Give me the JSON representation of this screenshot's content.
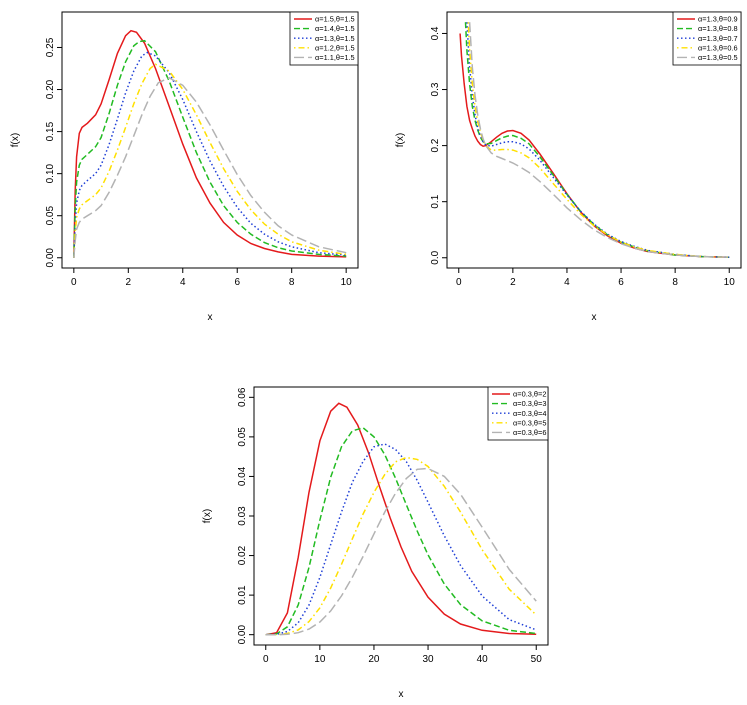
{
  "chart_data": [
    {
      "type": "line",
      "xlabel": "x",
      "ylabel": "f(x)",
      "xlim": [
        0,
        10
      ],
      "ylim": [
        0,
        0.28
      ],
      "x_ticks": [
        "0",
        "2",
        "4",
        "6",
        "8",
        "10"
      ],
      "y_ticks": [
        "0.00",
        "0.05",
        "0.10",
        "0.15",
        "0.20",
        "0.25"
      ],
      "x_tick_values": [
        0,
        2,
        4,
        6,
        8,
        10
      ],
      "y_tick_values": [
        0,
        0.05,
        0.1,
        0.15,
        0.2,
        0.25
      ],
      "legend_position": "top-right",
      "series": [
        {
          "name": "α=1.5,θ=1.5",
          "color": "#e41a1c",
          "dash": "solid",
          "x": [
            0,
            0.05,
            0.1,
            0.2,
            0.3,
            0.5,
            0.8,
            1.0,
            1.3,
            1.6,
            1.9,
            2.1,
            2.3,
            2.6,
            3.0,
            3.5,
            4.0,
            4.5,
            5.0,
            5.5,
            6.0,
            6.5,
            7.0,
            7.5,
            8.0,
            9.0,
            10.0
          ],
          "y": [
            0,
            0.08,
            0.12,
            0.148,
            0.155,
            0.16,
            0.17,
            0.183,
            0.212,
            0.243,
            0.264,
            0.27,
            0.268,
            0.255,
            0.225,
            0.18,
            0.135,
            0.095,
            0.065,
            0.042,
            0.027,
            0.017,
            0.011,
            0.007,
            0.004,
            0.002,
            0.001
          ]
        },
        {
          "name": "α=1.4,θ=1.5",
          "color": "#22bb22",
          "dash": "dashed",
          "x": [
            0,
            0.05,
            0.1,
            0.2,
            0.3,
            0.5,
            0.8,
            1.0,
            1.3,
            1.6,
            1.9,
            2.2,
            2.4,
            2.6,
            3.0,
            3.5,
            4.0,
            4.5,
            5.0,
            5.5,
            6.0,
            6.5,
            7.0,
            7.5,
            8.0,
            9.0,
            10.0
          ],
          "y": [
            0,
            0.06,
            0.09,
            0.11,
            0.117,
            0.123,
            0.132,
            0.143,
            0.172,
            0.205,
            0.233,
            0.252,
            0.257,
            0.258,
            0.245,
            0.21,
            0.167,
            0.125,
            0.09,
            0.062,
            0.042,
            0.028,
            0.018,
            0.012,
            0.008,
            0.004,
            0.002
          ]
        },
        {
          "name": "α=1.3,θ=1.5",
          "color": "#1f3fd6",
          "dash": "dotted",
          "x": [
            0,
            0.05,
            0.1,
            0.2,
            0.3,
            0.5,
            0.8,
            1.0,
            1.3,
            1.6,
            1.9,
            2.2,
            2.5,
            2.7,
            3.0,
            3.5,
            4.0,
            4.5,
            5.0,
            5.5,
            6.0,
            6.5,
            7.0,
            7.5,
            8.0,
            9.0,
            10.0
          ],
          "y": [
            0,
            0.04,
            0.065,
            0.08,
            0.086,
            0.092,
            0.1,
            0.11,
            0.135,
            0.165,
            0.196,
            0.222,
            0.24,
            0.244,
            0.24,
            0.22,
            0.188,
            0.15,
            0.115,
            0.085,
            0.06,
            0.041,
            0.028,
            0.019,
            0.013,
            0.006,
            0.003
          ]
        },
        {
          "name": "α=1.2,θ=1.5",
          "color": "#ffe000",
          "dash": "dotdash",
          "x": [
            0,
            0.05,
            0.1,
            0.2,
            0.3,
            0.5,
            0.8,
            1.0,
            1.3,
            1.6,
            1.9,
            2.2,
            2.5,
            2.8,
            3.0,
            3.5,
            4.0,
            4.5,
            5.0,
            5.5,
            6.0,
            6.5,
            7.0,
            7.5,
            8.0,
            9.0,
            10.0
          ],
          "y": [
            0,
            0.03,
            0.048,
            0.058,
            0.063,
            0.068,
            0.075,
            0.083,
            0.103,
            0.128,
            0.155,
            0.183,
            0.207,
            0.225,
            0.23,
            0.222,
            0.2,
            0.17,
            0.137,
            0.106,
            0.079,
            0.057,
            0.04,
            0.028,
            0.019,
            0.009,
            0.004
          ]
        },
        {
          "name": "α=1.1,θ=1.5",
          "color": "#b3b3b3",
          "dash": "longdash",
          "x": [
            0,
            0.05,
            0.1,
            0.2,
            0.3,
            0.5,
            0.8,
            1.0,
            1.3,
            1.6,
            1.9,
            2.2,
            2.5,
            2.8,
            3.1,
            3.5,
            4.0,
            4.5,
            5.0,
            5.5,
            6.0,
            6.5,
            7.0,
            7.5,
            8.0,
            9.0,
            10.0
          ],
          "y": [
            0,
            0.02,
            0.034,
            0.042,
            0.046,
            0.05,
            0.056,
            0.062,
            0.078,
            0.098,
            0.12,
            0.145,
            0.17,
            0.192,
            0.208,
            0.214,
            0.205,
            0.185,
            0.158,
            0.128,
            0.099,
            0.074,
            0.054,
            0.038,
            0.027,
            0.013,
            0.006
          ]
        }
      ]
    },
    {
      "type": "line",
      "xlabel": "x",
      "ylabel": "f(x)",
      "xlim": [
        0,
        10
      ],
      "ylim": [
        0,
        0.42
      ],
      "x_ticks": [
        "0",
        "2",
        "4",
        "6",
        "8",
        "10"
      ],
      "y_ticks": [
        "0.0",
        "0.1",
        "0.2",
        "0.3",
        "0.4"
      ],
      "x_tick_values": [
        0,
        2,
        4,
        6,
        8,
        10
      ],
      "y_tick_values": [
        0,
        0.1,
        0.2,
        0.3,
        0.4
      ],
      "legend_position": "top-right",
      "series": [
        {
          "name": "α=1.3,θ=0.9",
          "color": "#e41a1c",
          "dash": "solid",
          "x": [
            0.05,
            0.1,
            0.2,
            0.3,
            0.4,
            0.5,
            0.6,
            0.7,
            0.8,
            0.9,
            1.0,
            1.2,
            1.4,
            1.6,
            1.8,
            2.0,
            2.3,
            2.6,
            3.0,
            3.5,
            4.0,
            4.5,
            5.0,
            5.5,
            6.0,
            6.5,
            7.0,
            8.0,
            9.0,
            10.0
          ],
          "y": [
            0.4,
            0.36,
            0.31,
            0.27,
            0.245,
            0.23,
            0.217,
            0.208,
            0.202,
            0.199,
            0.2,
            0.207,
            0.215,
            0.222,
            0.226,
            0.227,
            0.222,
            0.21,
            0.185,
            0.15,
            0.114,
            0.082,
            0.057,
            0.039,
            0.026,
            0.017,
            0.011,
            0.005,
            0.002,
            0.001
          ]
        },
        {
          "name": "α=1.3,θ=0.8",
          "color": "#22bb22",
          "dash": "dashed",
          "x": [
            0.25,
            0.3,
            0.4,
            0.5,
            0.6,
            0.7,
            0.8,
            0.9,
            1.0,
            1.2,
            1.4,
            1.6,
            1.8,
            2.0,
            2.3,
            2.6,
            3.0,
            3.5,
            4.0,
            4.5,
            5.0,
            5.5,
            6.0,
            6.5,
            7.0,
            8.0,
            9.0,
            10.0
          ],
          "y": [
            0.42,
            0.37,
            0.31,
            0.27,
            0.245,
            0.228,
            0.215,
            0.207,
            0.203,
            0.204,
            0.209,
            0.214,
            0.217,
            0.218,
            0.213,
            0.203,
            0.18,
            0.147,
            0.113,
            0.083,
            0.059,
            0.041,
            0.028,
            0.019,
            0.012,
            0.005,
            0.002,
            0.001
          ]
        },
        {
          "name": "α=1.3,θ=0.7",
          "color": "#1f3fd6",
          "dash": "dotted",
          "x": [
            0.3,
            0.4,
            0.5,
            0.6,
            0.7,
            0.8,
            0.9,
            1.0,
            1.2,
            1.4,
            1.6,
            1.8,
            2.0,
            2.3,
            2.6,
            3.0,
            3.5,
            4.0,
            4.5,
            5.0,
            5.5,
            6.0,
            6.5,
            7.0,
            8.0,
            9.0,
            10.0
          ],
          "y": [
            0.42,
            0.34,
            0.29,
            0.255,
            0.232,
            0.217,
            0.207,
            0.201,
            0.199,
            0.202,
            0.205,
            0.207,
            0.207,
            0.203,
            0.194,
            0.174,
            0.143,
            0.112,
            0.083,
            0.06,
            0.042,
            0.029,
            0.02,
            0.013,
            0.006,
            0.002,
            0.001
          ]
        },
        {
          "name": "α=1.3,θ=0.6",
          "color": "#ffe000",
          "dash": "dotdash",
          "x": [
            0.35,
            0.4,
            0.5,
            0.6,
            0.7,
            0.8,
            0.9,
            1.0,
            1.2,
            1.4,
            1.6,
            1.8,
            2.0,
            2.3,
            2.6,
            3.0,
            3.5,
            4.0,
            4.5,
            5.0,
            5.5,
            6.0,
            6.5,
            7.0,
            8.0,
            9.0,
            10.0
          ],
          "y": [
            0.42,
            0.37,
            0.31,
            0.27,
            0.243,
            0.224,
            0.21,
            0.2,
            0.192,
            0.192,
            0.193,
            0.193,
            0.192,
            0.187,
            0.178,
            0.16,
            0.132,
            0.104,
            0.078,
            0.057,
            0.041,
            0.028,
            0.019,
            0.013,
            0.006,
            0.002,
            0.001
          ]
        },
        {
          "name": "α=1.3,θ=0.5",
          "color": "#b3b3b3",
          "dash": "longdash",
          "x": [
            0.4,
            0.5,
            0.6,
            0.7,
            0.8,
            0.9,
            1.0,
            1.2,
            1.4,
            1.6,
            1.8,
            2.0,
            2.3,
            2.6,
            3.0,
            3.5,
            4.0,
            4.5,
            5.0,
            5.5,
            6.0,
            6.5,
            7.0,
            8.0,
            9.0,
            10.0
          ],
          "y": [
            0.42,
            0.34,
            0.29,
            0.255,
            0.23,
            0.212,
            0.2,
            0.187,
            0.181,
            0.177,
            0.173,
            0.169,
            0.161,
            0.152,
            0.136,
            0.113,
            0.089,
            0.068,
            0.05,
            0.036,
            0.025,
            0.017,
            0.011,
            0.005,
            0.002,
            0.001
          ]
        }
      ]
    },
    {
      "type": "line",
      "xlabel": "x",
      "ylabel": "f(x)",
      "xlim": [
        0,
        50
      ],
      "ylim": [
        0,
        0.06
      ],
      "x_ticks": [
        "0",
        "10",
        "20",
        "30",
        "40",
        "50"
      ],
      "y_ticks": [
        "0.00",
        "0.01",
        "0.02",
        "0.03",
        "0.04",
        "0.05",
        "0.06"
      ],
      "x_tick_values": [
        0,
        10,
        20,
        30,
        40,
        50
      ],
      "y_tick_values": [
        0,
        0.01,
        0.02,
        0.03,
        0.04,
        0.05,
        0.06
      ],
      "legend_position": "top-right",
      "series": [
        {
          "name": "α=0.3,θ=2",
          "color": "#e41a1c",
          "dash": "solid",
          "x": [
            0,
            2,
            4,
            6,
            8,
            10,
            12,
            13.5,
            15,
            17,
            19,
            21,
            23,
            25,
            27,
            30,
            33,
            36,
            40,
            45,
            50
          ],
          "y": [
            0,
            0.0005,
            0.0055,
            0.0195,
            0.036,
            0.049,
            0.0565,
            0.0585,
            0.0575,
            0.053,
            0.046,
            0.0375,
            0.0295,
            0.0222,
            0.016,
            0.0095,
            0.0052,
            0.0027,
            0.0011,
            0.0003,
            0.0001
          ]
        },
        {
          "name": "α=0.3,θ=3",
          "color": "#22bb22",
          "dash": "dashed",
          "x": [
            0,
            2,
            4,
            6,
            8,
            10,
            12,
            14,
            16,
            18,
            20,
            22,
            24,
            26,
            28,
            30,
            33,
            36,
            40,
            45,
            50
          ],
          "y": [
            0,
            0.0002,
            0.002,
            0.0075,
            0.017,
            0.029,
            0.0398,
            0.0475,
            0.0515,
            0.0523,
            0.05,
            0.0455,
            0.0395,
            0.0328,
            0.0262,
            0.0202,
            0.0128,
            0.0076,
            0.0035,
            0.0011,
            0.0003
          ]
        },
        {
          "name": "α=0.3,θ=4",
          "color": "#1f3fd6",
          "dash": "dotted",
          "x": [
            0,
            2,
            4,
            6,
            8,
            10,
            12,
            14,
            16,
            18,
            20,
            22,
            24,
            26,
            28,
            30,
            33,
            36,
            40,
            45,
            50
          ],
          "y": [
            0,
            0.0001,
            0.0008,
            0.003,
            0.0075,
            0.0145,
            0.0228,
            0.031,
            0.0385,
            0.0438,
            0.0475,
            0.0482,
            0.0468,
            0.0437,
            0.039,
            0.0335,
            0.025,
            0.0175,
            0.0098,
            0.0038,
            0.0012
          ]
        },
        {
          "name": "α=0.3,θ=5",
          "color": "#ffe000",
          "dash": "dotdash",
          "x": [
            0,
            2,
            4,
            6,
            8,
            10,
            12,
            14,
            16,
            18,
            20,
            22,
            24,
            26,
            28,
            30,
            33,
            36,
            40,
            45,
            50
          ],
          "y": [
            0,
            0,
            0.0003,
            0.0012,
            0.0033,
            0.0068,
            0.0118,
            0.0178,
            0.0242,
            0.0305,
            0.036,
            0.0405,
            0.0437,
            0.0448,
            0.0443,
            0.0425,
            0.0375,
            0.031,
            0.0215,
            0.0115,
            0.005
          ]
        },
        {
          "name": "α=0.3,θ=6",
          "color": "#b3b3b3",
          "dash": "longdash",
          "x": [
            0,
            2,
            4,
            6,
            8,
            10,
            12,
            14,
            16,
            18,
            20,
            22,
            24,
            26,
            28,
            30,
            33,
            36,
            40,
            45,
            50
          ],
          "y": [
            0,
            0,
            0.0001,
            0.0005,
            0.0014,
            0.0032,
            0.006,
            0.0098,
            0.0145,
            0.0198,
            0.0255,
            0.031,
            0.0358,
            0.0395,
            0.0418,
            0.042,
            0.04,
            0.0355,
            0.0272,
            0.0165,
            0.0085
          ]
        }
      ]
    }
  ]
}
